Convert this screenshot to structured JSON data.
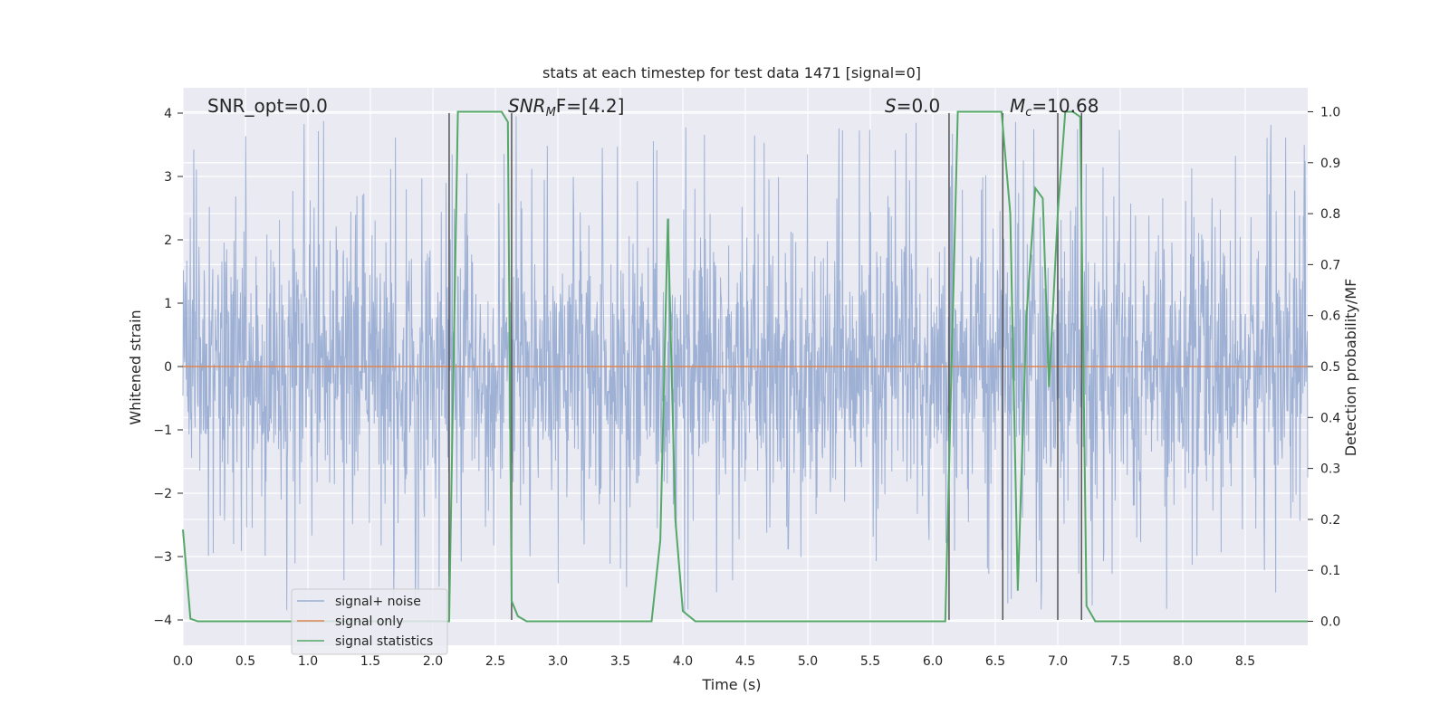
{
  "chart_data": {
    "type": "line",
    "title": "stats at each timestep for test data 1471 [signal=0]",
    "xlabel": "Time (s)",
    "ylabel": "Whitened strain",
    "y2label": "Detection probability/MF",
    "xlim": [
      0,
      9.0
    ],
    "ylim": [
      -4.4,
      4.4
    ],
    "y2lim": [
      -0.047,
      1.047
    ],
    "x_ticks": [
      "0.0",
      "0.5",
      "1.0",
      "1.5",
      "2.0",
      "2.5",
      "3.0",
      "3.5",
      "4.0",
      "4.5",
      "5.0",
      "5.5",
      "6.0",
      "6.5",
      "7.0",
      "7.5",
      "8.0",
      "8.5"
    ],
    "y_ticks": [
      "4",
      "3",
      "2",
      "1",
      "0",
      "−1",
      "−2",
      "−3",
      "−4"
    ],
    "y_tick_values": [
      4,
      3,
      2,
      1,
      0,
      -1,
      -2,
      -3,
      -4
    ],
    "y2_ticks": [
      "1.0",
      "0.9",
      "0.8",
      "0.7",
      "0.6",
      "0.5",
      "0.4",
      "0.3",
      "0.2",
      "0.1",
      "0.0"
    ],
    "y2_tick_values": [
      1.0,
      0.9,
      0.8,
      0.7,
      0.6,
      0.5,
      0.4,
      0.3,
      0.2,
      0.1,
      0.0
    ],
    "grid": true,
    "legend_position": "lower-left",
    "annotations": {
      "snr_opt": "SNR_opt=0.0",
      "snr_mf": "SNR",
      "snr_mf_sub": "M",
      "snr_mf_rest": "F=[4.2]",
      "s_label": "S",
      "s_rest": "=0.0",
      "mc_label": "M",
      "mc_sub": "c",
      "mc_rest": "=10.68"
    },
    "series": [
      {
        "name": "signal+ noise",
        "color": "#9aaed3",
        "description_values": "noise between about -2.5 and 2.5 with spikes to about 4 and -4"
      },
      {
        "name": "signal only",
        "color": "#dd8452",
        "values": 0
      },
      {
        "name": "signal statistics",
        "color": "#55a868",
        "x": [
          0.0,
          0.06,
          0.12,
          2.0,
          2.1,
          2.13,
          2.2,
          2.55,
          2.6,
          2.63,
          2.68,
          2.75,
          3.75,
          3.82,
          3.88,
          3.94,
          4.0,
          4.1,
          6.05,
          6.1,
          6.2,
          6.55,
          6.62,
          6.68,
          6.75,
          6.82,
          6.88,
          6.93,
          7.0,
          7.06,
          7.12,
          7.18,
          7.23,
          7.3,
          9.0
        ],
        "y": [
          0.18,
          0.005,
          0.0,
          0.0,
          0.0,
          0.0,
          1.0,
          1.0,
          0.98,
          0.04,
          0.01,
          0.0,
          0.0,
          0.16,
          0.79,
          0.2,
          0.02,
          0.0,
          0.0,
          0.0,
          1.0,
          1.0,
          0.8,
          0.06,
          0.6,
          0.85,
          0.83,
          0.46,
          0.8,
          1.0,
          1.0,
          0.99,
          0.03,
          0.0,
          0.0
        ]
      }
    ],
    "vlines": [
      2.13,
      2.63,
      6.13,
      6.56,
      7.0,
      7.19
    ]
  }
}
